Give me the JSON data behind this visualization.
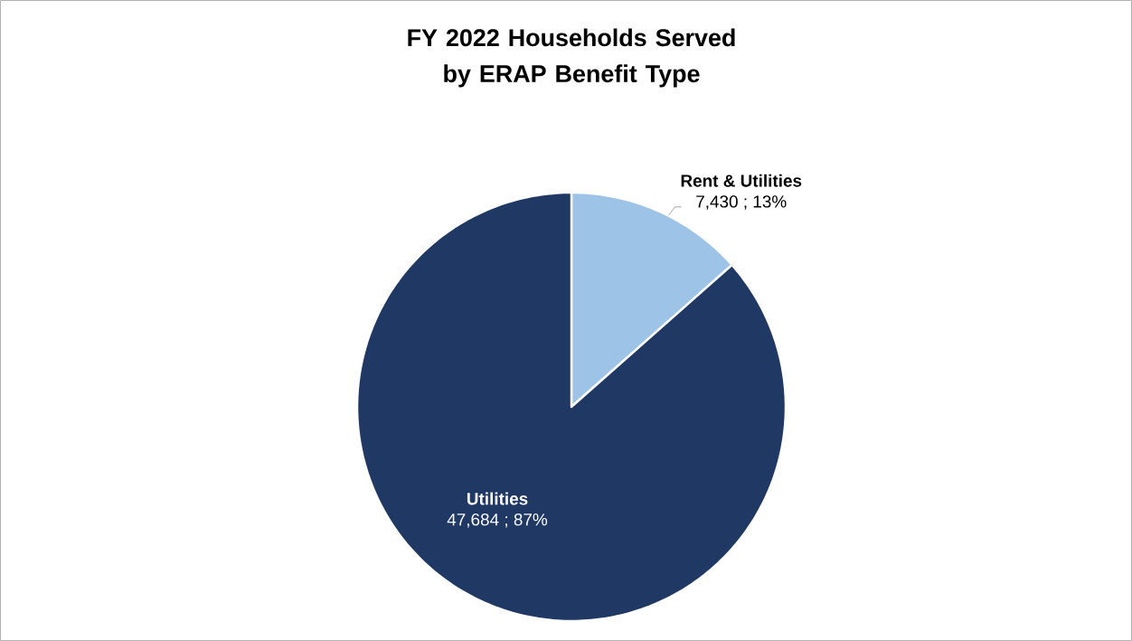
{
  "chart_data": {
    "type": "pie",
    "title": "FY 2022 Households Served by ERAP Benefit Type",
    "categories": [
      "Rent & Utilities",
      "Utilities"
    ],
    "values": [
      7430,
      47684
    ],
    "colors": [
      "#9dc3e6",
      "#203864"
    ],
    "value_labels": [
      "7,430 ; 13%",
      "47,684 ; 87%"
    ]
  }
}
